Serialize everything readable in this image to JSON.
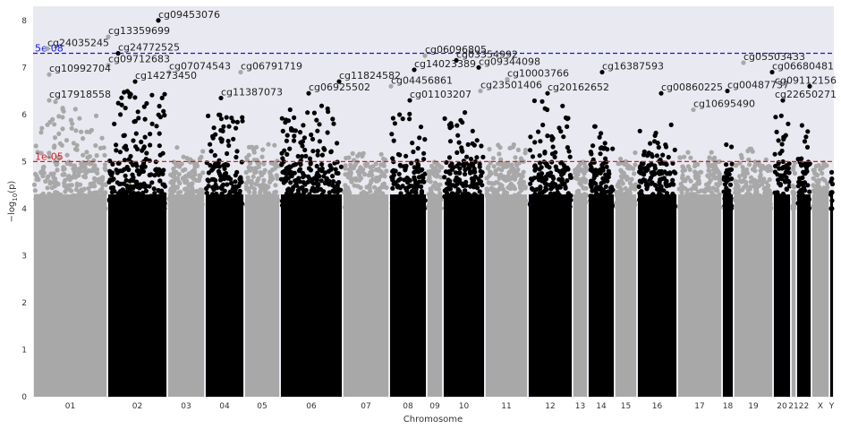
{
  "chart_data": {
    "type": "scatter",
    "xlabel": "Chromosome",
    "ylabel": "−log10(p)",
    "ylim": [
      0,
      8.3
    ],
    "y_ticks": [
      0,
      1,
      2,
      3,
      4,
      5,
      6,
      7,
      8
    ],
    "grid": false,
    "background": "#e9e9f1",
    "colors": {
      "odd": "#a8a8a8",
      "even": "#000000"
    },
    "chromosomes": [
      {
        "label": "01",
        "start": 0,
        "end": 83,
        "color": "odd",
        "peak": 6.3
      },
      {
        "label": "02",
        "start": 83,
        "end": 150,
        "color": "even",
        "peak": 6.5
      },
      {
        "label": "03",
        "start": 150,
        "end": 192,
        "color": "odd",
        "peak": 5.3
      },
      {
        "label": "04",
        "start": 192,
        "end": 236,
        "color": "even",
        "peak": 6.0
      },
      {
        "label": "05",
        "start": 236,
        "end": 276,
        "color": "odd",
        "peak": 5.4
      },
      {
        "label": "06",
        "start": 276,
        "end": 346,
        "color": "even",
        "peak": 6.2
      },
      {
        "label": "07",
        "start": 346,
        "end": 398,
        "color": "odd",
        "peak": 5.2
      },
      {
        "label": "08",
        "start": 398,
        "end": 440,
        "color": "even",
        "peak": 6.1
      },
      {
        "label": "09",
        "start": 440,
        "end": 458,
        "color": "odd",
        "peak": 5.0
      },
      {
        "label": "10",
        "start": 458,
        "end": 505,
        "color": "even",
        "peak": 6.1
      },
      {
        "label": "11",
        "start": 505,
        "end": 553,
        "color": "odd",
        "peak": 5.4
      },
      {
        "label": "12",
        "start": 553,
        "end": 603,
        "color": "even",
        "peak": 6.3
      },
      {
        "label": "13",
        "start": 603,
        "end": 620,
        "color": "odd",
        "peak": 5.0
      },
      {
        "label": "14",
        "start": 620,
        "end": 650,
        "color": "even",
        "peak": 6.0
      },
      {
        "label": "15",
        "start": 650,
        "end": 675,
        "color": "odd",
        "peak": 5.2
      },
      {
        "label": "16",
        "start": 675,
        "end": 720,
        "color": "even",
        "peak": 5.8
      },
      {
        "label": "17",
        "start": 720,
        "end": 770,
        "color": "odd",
        "peak": 5.3
      },
      {
        "label": "18",
        "start": 770,
        "end": 783,
        "color": "even",
        "peak": 5.5
      },
      {
        "label": "19",
        "start": 783,
        "end": 827,
        "color": "odd",
        "peak": 5.3
      },
      {
        "label": "20",
        "start": 827,
        "end": 847,
        "color": "even",
        "peak": 6.0
      },
      {
        "label": "21",
        "start": 847,
        "end": 853,
        "color": "odd",
        "peak": 4.6
      },
      {
        "label": "22",
        "start": 853,
        "end": 870,
        "color": "even",
        "peak": 6.0
      },
      {
        "label": "X",
        "start": 870,
        "end": 890,
        "color": "odd",
        "peak": 5.0
      },
      {
        "label": "Y",
        "start": 890,
        "end": 895,
        "color": "even",
        "peak": 4.0
      }
    ],
    "thresholds": [
      {
        "label": "5e-08",
        "value": 7.3,
        "color": "#1515e0"
      },
      {
        "label": "1e-05",
        "value": 5.0,
        "color": "#d91e1e"
      }
    ],
    "annotations": [
      {
        "label": "cg09453076",
        "x": 140,
        "y": 8.0,
        "color": "even"
      },
      {
        "label": "cg13359699",
        "x": 84,
        "y": 7.65,
        "color": "odd"
      },
      {
        "label": "cg24035245",
        "x": 16,
        "y": 7.4,
        "color": "odd"
      },
      {
        "label": "cg24772525",
        "x": 95,
        "y": 7.3,
        "color": "even"
      },
      {
        "label": "cg09712683",
        "x": 84,
        "y": 7.05,
        "color": "odd"
      },
      {
        "label": "cg10992704",
        "x": 18,
        "y": 6.85,
        "color": "odd"
      },
      {
        "label": "cg07074543",
        "x": 152,
        "y": 6.9,
        "color": "odd"
      },
      {
        "label": "cg14273450",
        "x": 114,
        "y": 6.7,
        "color": "even"
      },
      {
        "label": "cg17918558",
        "x": 18,
        "y": 6.3,
        "color": "odd"
      },
      {
        "label": "cg11387073",
        "x": 210,
        "y": 6.35,
        "color": "even"
      },
      {
        "label": "cg06791719",
        "x": 232,
        "y": 6.9,
        "color": "odd"
      },
      {
        "label": "cg11824582",
        "x": 342,
        "y": 6.7,
        "color": "even"
      },
      {
        "label": "cg06925502",
        "x": 308,
        "y": 6.45,
        "color": "even"
      },
      {
        "label": "cg06096805",
        "x": 438,
        "y": 7.25,
        "color": "odd"
      },
      {
        "label": "cg14023389",
        "x": 426,
        "y": 6.95,
        "color": "even"
      },
      {
        "label": "cg04456861",
        "x": 400,
        "y": 6.6,
        "color": "odd"
      },
      {
        "label": "cg01103207",
        "x": 421,
        "y": 6.3,
        "color": "even"
      },
      {
        "label": "cg03354992",
        "x": 473,
        "y": 7.15,
        "color": "even"
      },
      {
        "label": "cg09344098",
        "x": 498,
        "y": 7.0,
        "color": "even"
      },
      {
        "label": "cg23501406",
        "x": 500,
        "y": 6.5,
        "color": "odd"
      },
      {
        "label": "cg10003766",
        "x": 530,
        "y": 6.75,
        "color": "odd"
      },
      {
        "label": "cg20162652",
        "x": 575,
        "y": 6.45,
        "color": "even"
      },
      {
        "label": "cg16387593",
        "x": 636,
        "y": 6.9,
        "color": "even"
      },
      {
        "label": "cg00860225",
        "x": 702,
        "y": 6.45,
        "color": "even"
      },
      {
        "label": "cg10695490",
        "x": 738,
        "y": 6.1,
        "color": "odd"
      },
      {
        "label": "cg05503433",
        "x": 794,
        "y": 7.1,
        "color": "odd"
      },
      {
        "label": "cg06680481",
        "x": 826,
        "y": 6.9,
        "color": "even"
      },
      {
        "label": "cg00487737",
        "x": 776,
        "y": 6.5,
        "color": "even"
      },
      {
        "label": "cg09112156",
        "x": 868,
        "y": 6.6,
        "color": "even"
      },
      {
        "label": "cg22650271",
        "x": 838,
        "y": 6.3,
        "color": "even"
      }
    ]
  }
}
